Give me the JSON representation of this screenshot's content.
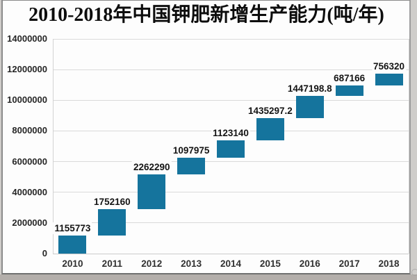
{
  "chart_data": {
    "type": "bar",
    "subtype": "waterfall-floating-bars",
    "title": "2010-2018年中国钾肥新增生产能力(吨/年)",
    "categories": [
      "2010",
      "2011",
      "2012",
      "2013",
      "2014",
      "2015",
      "2016",
      "2017",
      "2018"
    ],
    "values": [
      1155773,
      1752160,
      2262290,
      1097975,
      1123140,
      1435297.2,
      1447198.8,
      687166,
      756320
    ],
    "value_labels": [
      "1155773",
      "1752160",
      "2262290",
      "1097975",
      "1123140",
      "1435297.2",
      "1447198.8",
      "687166",
      "756320"
    ],
    "cumulative_totals": [
      1155773,
      2907933,
      5170223,
      6268198,
      7391338,
      8826635.2,
      10273834,
      10961000,
      11717320
    ],
    "xlabel": "",
    "ylabel": "",
    "ylim": [
      0,
      14000000
    ],
    "ytick_values": [
      0,
      2000000,
      4000000,
      6000000,
      8000000,
      10000000,
      12000000,
      14000000
    ],
    "ytick_labels": [
      "0",
      "2000000",
      "4000000",
      "6000000",
      "8000000",
      "10000000",
      "12000000",
      "14000000"
    ],
    "grid": true,
    "legend": "none",
    "bar_color": "#15749d",
    "gridline_color": "#dadada",
    "text_color": "#141414"
  }
}
